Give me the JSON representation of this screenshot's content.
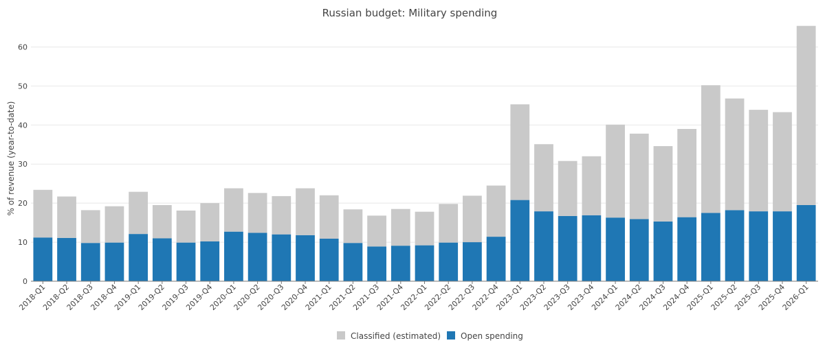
{
  "chart_data": {
    "type": "bar",
    "stacked": true,
    "title": "Russian budget: Military spending",
    "xlabel": "",
    "ylabel": "% of revenue (year-to-date)",
    "ylim": [
      0,
      65
    ],
    "yticks": [
      0,
      10,
      20,
      30,
      40,
      50,
      60
    ],
    "grid": true,
    "legend_position": "bottom",
    "categories": [
      "2018-Q1",
      "2018-Q2",
      "2018-Q3",
      "2018-Q4",
      "2019-Q1",
      "2019-Q2",
      "2019-Q3",
      "2019-Q4",
      "2020-Q1",
      "2020-Q2",
      "2020-Q3",
      "2020-Q4",
      "2021-Q1",
      "2021-Q2",
      "2021-Q3",
      "2021-Q4",
      "2022-Q1",
      "2022-Q2",
      "2022-Q3",
      "2022-Q4",
      "2023-Q1",
      "2023-Q2",
      "2023-Q3",
      "2023-Q4",
      "2024-Q1",
      "2024-Q2",
      "2024-Q3",
      "2024-Q4",
      "2025-Q1",
      "2025-Q2",
      "2025-Q3",
      "2025-Q4",
      "2026-Q1"
    ],
    "series": [
      {
        "name": "Open spending",
        "color": "#1f77b4",
        "values": [
          11.2,
          11.1,
          9.8,
          9.9,
          12.1,
          11.0,
          9.9,
          10.2,
          12.7,
          12.4,
          12.0,
          11.8,
          10.9,
          9.8,
          8.9,
          9.1,
          9.2,
          9.9,
          10.0,
          11.4,
          20.8,
          17.9,
          16.7,
          16.9,
          16.3,
          15.9,
          15.3,
          16.4,
          17.5,
          18.2,
          17.9,
          17.9,
          19.5
        ]
      },
      {
        "name": "Classified (estimated)",
        "color": "#c9c9c9",
        "values": [
          12.2,
          10.6,
          8.4,
          9.3,
          10.8,
          8.5,
          8.2,
          9.8,
          11.1,
          10.2,
          9.8,
          12.0,
          11.1,
          8.6,
          7.9,
          9.4,
          8.6,
          9.9,
          11.9,
          13.1,
          24.5,
          17.2,
          14.1,
          15.1,
          23.8,
          21.9,
          19.3,
          22.6,
          32.7,
          28.6,
          26.0,
          25.4,
          45.9
        ]
      }
    ],
    "legend": [
      "Classified (estimated)",
      "Open spending"
    ]
  }
}
